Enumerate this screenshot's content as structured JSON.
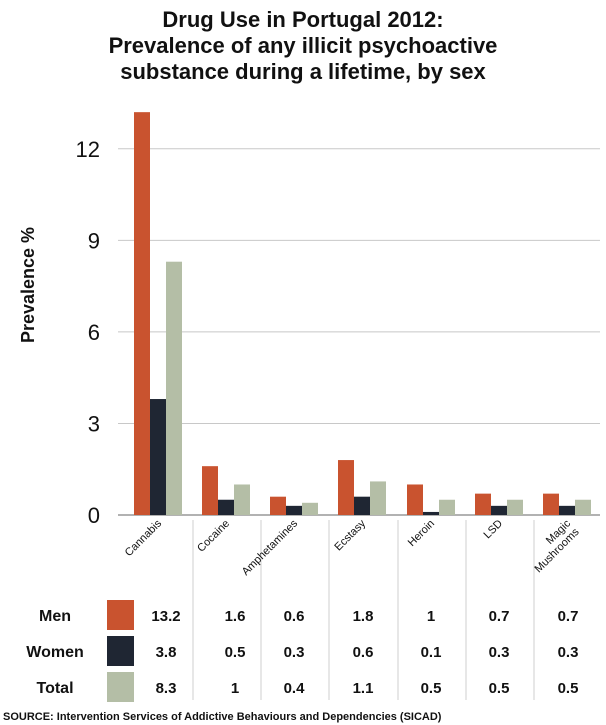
{
  "chart_data": {
    "type": "bar",
    "title": [
      "Drug Use in Portugal 2012:",
      "Prevalence of any illicit psychoactive",
      "substance during a lifetime, by sex"
    ],
    "ylabel": "Prevalence %",
    "xlabel": "",
    "ylim": [
      0,
      13.5
    ],
    "yticks": [
      "0",
      "3",
      "6",
      "9",
      "12"
    ],
    "ytick_values": [
      0,
      3,
      6,
      9,
      12
    ],
    "grid": "horizontal",
    "categories": [
      [
        "Cannabis"
      ],
      [
        "Cocaine"
      ],
      [
        "Amphetamines"
      ],
      [
        "Ecstasy"
      ],
      [
        "Heroin"
      ],
      [
        "LSD"
      ],
      [
        "Magic",
        "Mushrooms"
      ]
    ],
    "series": [
      {
        "name": "Men",
        "color": "#c9532f",
        "values": [
          13.2,
          1.6,
          0.6,
          1.8,
          1,
          0.7,
          0.7
        ],
        "labels": [
          "13.2",
          "1.6",
          "0.6",
          "1.8",
          "1",
          "0.7",
          "0.7"
        ]
      },
      {
        "name": "Women",
        "color": "#1f2633",
        "values": [
          3.8,
          0.5,
          0.3,
          0.6,
          0.1,
          0.3,
          0.3
        ],
        "labels": [
          "3.8",
          "0.5",
          "0.3",
          "0.6",
          "0.1",
          "0.3",
          "0.3"
        ]
      },
      {
        "name": "Total",
        "color": "#b4bea6",
        "values": [
          8.3,
          1,
          0.4,
          1.1,
          0.5,
          0.5,
          0.5
        ],
        "labels": [
          "8.3",
          "1",
          "0.4",
          "1.1",
          "0.5",
          "0.5",
          "0.5"
        ]
      }
    ],
    "legend": "table-below"
  },
  "source": "SOURCE: Intervention Services of Addictive Behaviours and Dependencies (SICAD)"
}
